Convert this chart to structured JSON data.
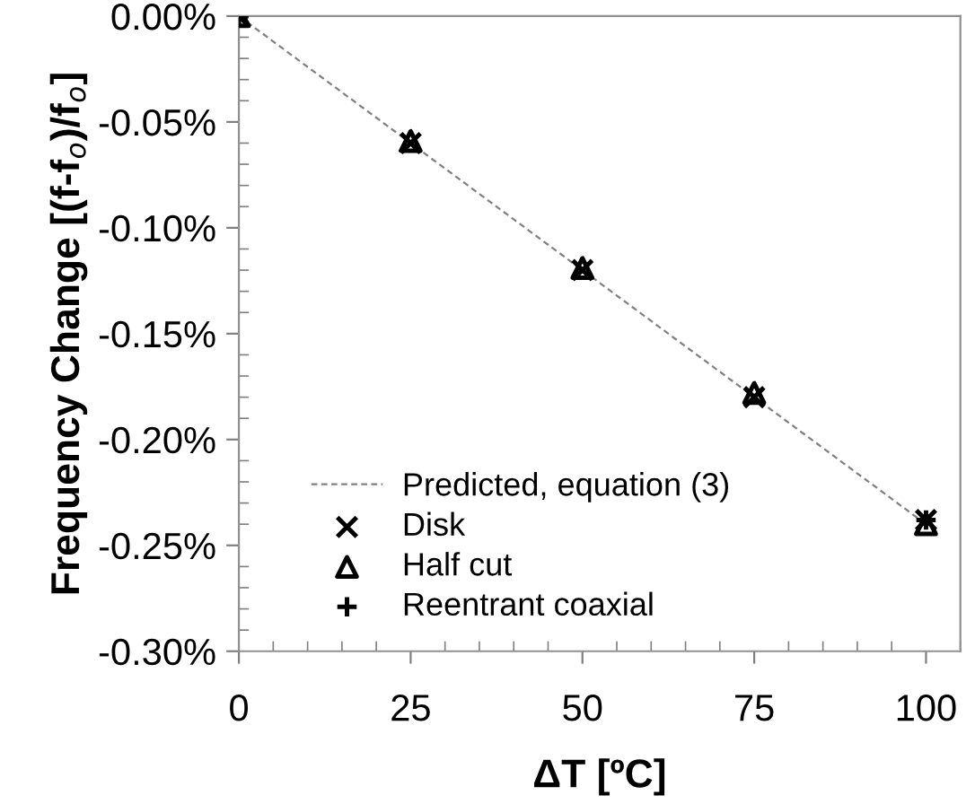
{
  "chart_data": {
    "type": "scatter",
    "xlabel": "ΔT [ºC]",
    "ylabel": "Frequency Change [(f-f$_{o}$)/f$_{o}$]",
    "x": [
      0,
      25,
      50,
      75,
      100
    ],
    "series": [
      {
        "name": "Predicted, equation (3)",
        "type": "line",
        "line_style": "dashed",
        "marker": "none",
        "color": "#808080",
        "values": [
          0,
          -0.06,
          -0.12,
          -0.18,
          -0.24
        ]
      },
      {
        "name": "Disk",
        "marker": "cross",
        "color": "#000000",
        "values": [
          0,
          -0.06,
          -0.12,
          -0.18,
          -0.238
        ]
      },
      {
        "name": "Half cut",
        "marker": "triangle",
        "color": "#000000",
        "values": [
          0,
          -0.059,
          -0.119,
          -0.178,
          -0.24
        ]
      },
      {
        "name": "Reentrant coaxial",
        "marker": "plus",
        "color": "#000000",
        "values": [
          0,
          null,
          null,
          null,
          -0.238
        ]
      }
    ],
    "xlim": [
      0,
      105
    ],
    "xticks": [
      0,
      25,
      50,
      75,
      100
    ],
    "ylim": [
      -0.3,
      0
    ],
    "yticks": [
      {
        "value": 0,
        "label": "0.00%"
      },
      {
        "value": -0.05,
        "label": "-0.05%"
      },
      {
        "value": -0.1,
        "label": "-0.10%"
      },
      {
        "value": -0.15,
        "label": "-0.15%"
      },
      {
        "value": -0.2,
        "label": "-0.20%"
      },
      {
        "value": -0.25,
        "label": "-0.25%"
      },
      {
        "value": -0.3,
        "label": "-0.30%"
      }
    ],
    "grid": false,
    "legend": "bottom left"
  }
}
